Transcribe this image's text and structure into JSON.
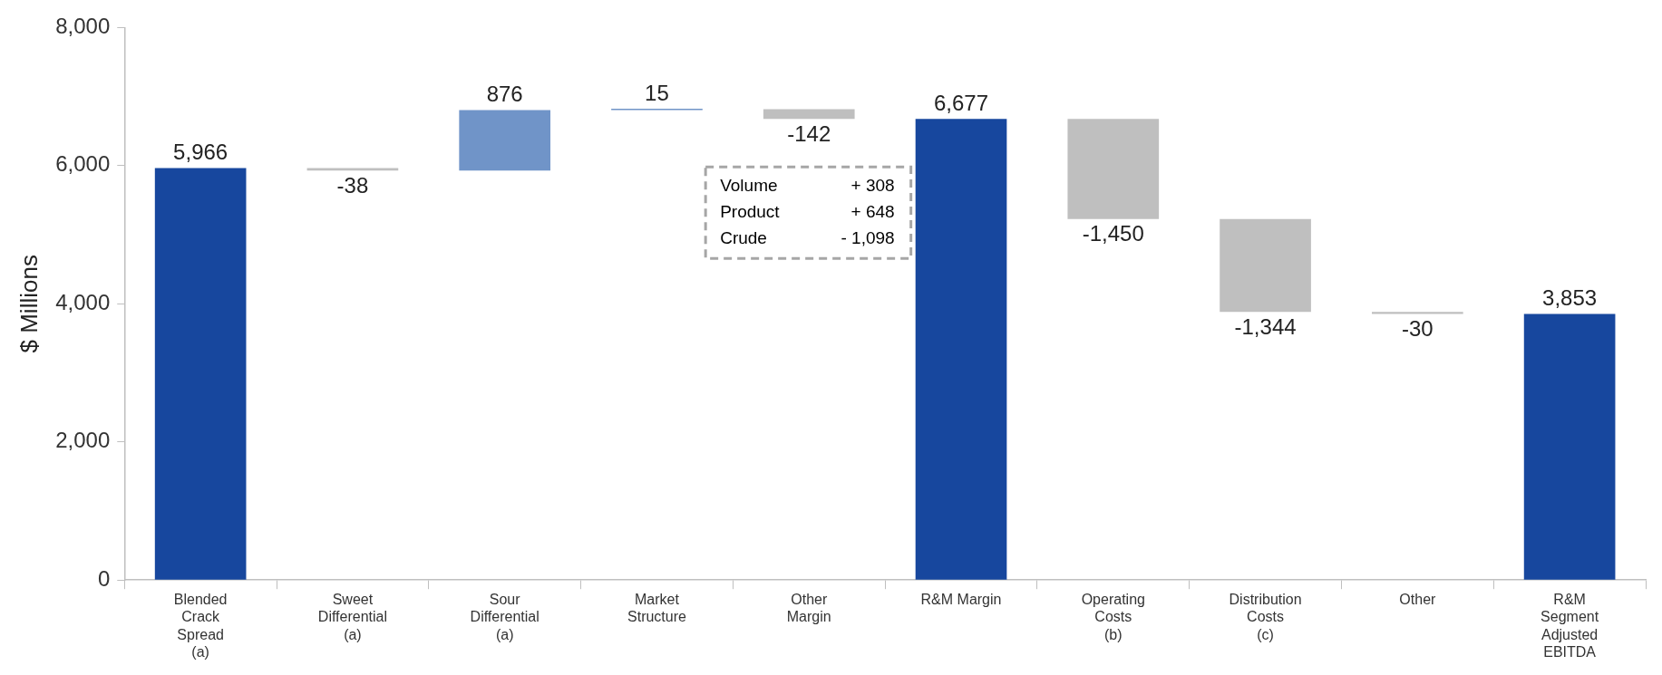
{
  "chart_data": {
    "type": "bar",
    "ylabel": "$ Millions",
    "categories": [
      "Blended Crack Spread (a)",
      "Sweet Differential (a)",
      "Sour Differential (a)",
      "Market Structure",
      "Other Margin",
      "R&M Margin",
      "Operating Costs (b)",
      "Distribution Costs (c)",
      "Other",
      "R&M Segment Adjusted EBITDA"
    ],
    "values": [
      5966,
      -38,
      876,
      15,
      -142,
      6677,
      -1450,
      -1344,
      -30,
      3853
    ],
    "base": [
      0,
      5966,
      5928,
      6804,
      6819,
      0,
      6677,
      5227,
      3883,
      0
    ],
    "colors": [
      "#17479e",
      "#bfbfbf",
      "#7094c8",
      "#7094c8",
      "#bfbfbf",
      "#17479e",
      "#bfbfbf",
      "#bfbfbf",
      "#bfbfbf",
      "#17479e"
    ],
    "value_labels": [
      "5,966",
      "-38",
      "876",
      "15",
      "-142",
      "6,677",
      "-1,450",
      "-1,344",
      "-30",
      "3,853"
    ],
    "ylim": [
      0,
      8000
    ],
    "yticks": [
      0,
      {
        "value": 2000,
        "label": "2,000"
      },
      {
        "value": 4000,
        "label": "4,000"
      },
      {
        "value": 6000,
        "label": "6,000"
      },
      {
        "value": 8000,
        "label": "8,000"
      }
    ],
    "grid": false,
    "annotations": [
      "Volume + 308",
      "Product + 648",
      "Crude - 1,098"
    ]
  }
}
